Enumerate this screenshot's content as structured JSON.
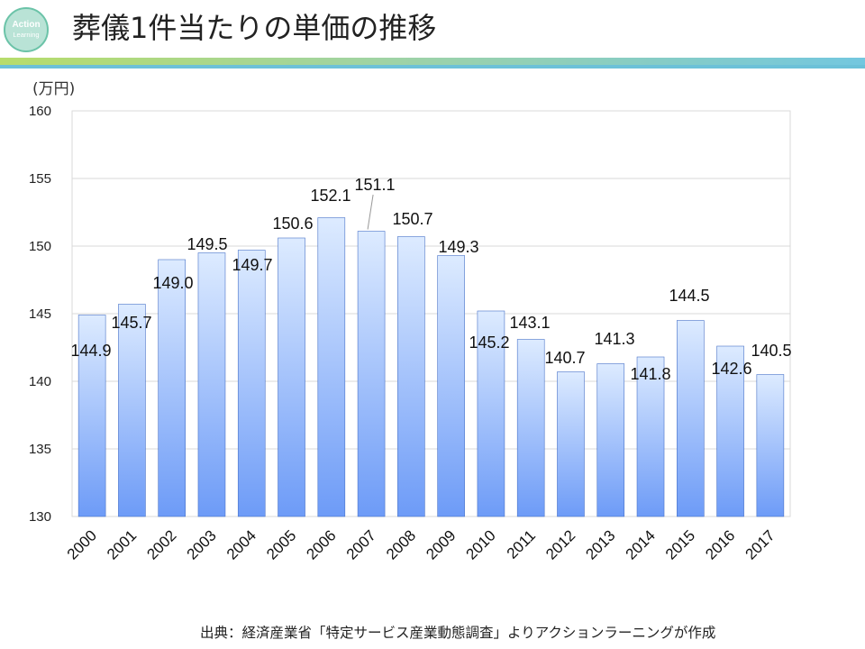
{
  "logo": {
    "line1": "Action",
    "line2": "Learning"
  },
  "slide": {
    "title": "葬儀1件当たりの単価の推移",
    "source": "出典：経済産業省「特定サービス産業動態調査」よりアクションラーニングが作成"
  },
  "colors": {
    "bar_top": "#ddebff",
    "bar_bottom": "#6d9bf7",
    "bar_stroke": "#4a73c8",
    "grid": "#d9d9d9"
  },
  "chart_data": {
    "type": "bar",
    "title": "葬儀1件当たりの単価の推移",
    "unit_label": "(万円)",
    "xlabel": "",
    "ylabel": "万円",
    "ylim": [
      130,
      160
    ],
    "yticks": [
      130,
      135,
      140,
      145,
      150,
      155,
      160
    ],
    "grid": true,
    "categories": [
      "2000",
      "2001",
      "2002",
      "2003",
      "2004",
      "2005",
      "2006",
      "2007",
      "2008",
      "2009",
      "2010",
      "2011",
      "2012",
      "2013",
      "2014",
      "2015",
      "2016",
      "2017"
    ],
    "values": [
      144.9,
      145.7,
      149.0,
      149.5,
      149.7,
      150.6,
      152.1,
      151.1,
      150.7,
      149.3,
      145.2,
      143.1,
      140.7,
      141.3,
      141.8,
      144.5,
      142.6,
      140.5
    ],
    "data_labels": [
      "144.9",
      "145.7",
      "149.0",
      "149.5",
      "149.7",
      "150.6",
      "152.1",
      "151.1",
      "150.7",
      "149.3",
      "145.2",
      "143.1",
      "140.7",
      "141.3",
      "141.8",
      "144.5",
      "142.6",
      "140.5"
    ]
  }
}
